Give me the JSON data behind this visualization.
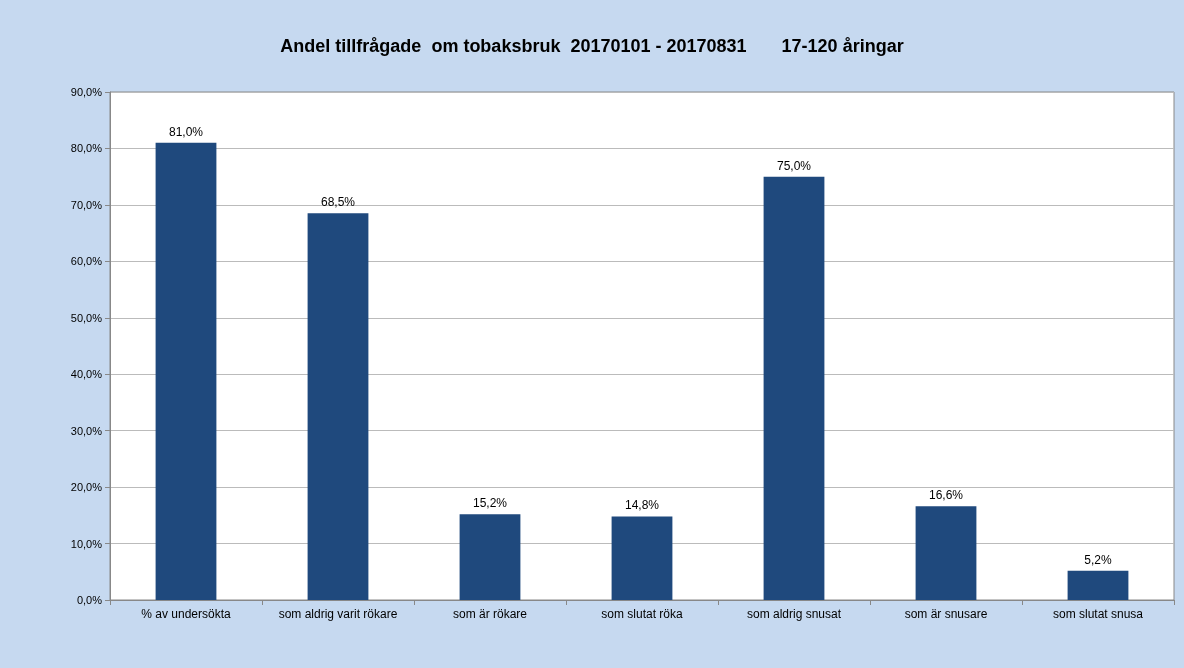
{
  "chart_data": {
    "type": "bar",
    "title": "Andel tillfrågade  om tobaksbruk  20170101 - 20170831       17-120 åringar",
    "categories": [
      "% av undersökta",
      "som aldrig varit rökare",
      "som är rökare",
      "som slutat röka",
      "som aldrig snusat",
      "som är snusare",
      "som slutat snusa"
    ],
    "values": [
      81.0,
      68.5,
      15.2,
      14.8,
      75.0,
      16.6,
      5.2
    ],
    "value_labels": [
      "81,0%",
      "68,5%",
      "15,2%",
      "14,8%",
      "75,0%",
      "16,6%",
      "5,2%"
    ],
    "color": "#1f497d",
    "ylim": [
      0,
      90
    ],
    "yticks": [
      {
        "value": 0,
        "label": "0,0%"
      },
      {
        "value": 10,
        "label": "10,0%"
      },
      {
        "value": 20,
        "label": "20,0%"
      },
      {
        "value": 30,
        "label": "30,0%"
      },
      {
        "value": 40,
        "label": "40,0%"
      },
      {
        "value": 50,
        "label": "50,0%"
      },
      {
        "value": 60,
        "label": "60,0%"
      },
      {
        "value": 70,
        "label": "70,0%"
      },
      {
        "value": 80,
        "label": "80,0%"
      },
      {
        "value": 90,
        "label": "90,0%"
      }
    ],
    "grid": "y"
  }
}
